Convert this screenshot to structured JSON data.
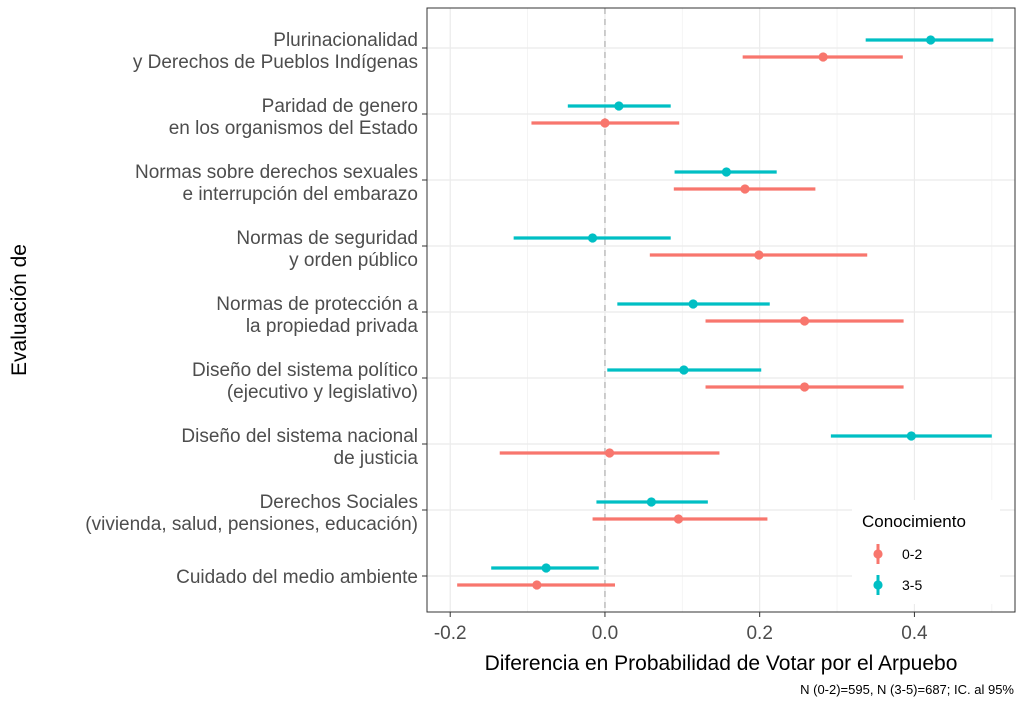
{
  "chart_data": {
    "type": "forest",
    "xlabel": "Diferencia en Probabilidad de Votar por el Arpuebo",
    "ylabel": "Evaluación de",
    "caption": "N (0-2)=595, N (3-5)=687; IC. al 95%",
    "xlim": [
      -0.23,
      0.53
    ],
    "xticks": [
      -0.2,
      0.0,
      0.2,
      0.4
    ],
    "xtick_labels": [
      "-0.2",
      "0.0",
      "0.2",
      "0.4"
    ],
    "reference_line": 0.0,
    "grid": true,
    "legend": {
      "title": "Conocimiento",
      "position": "bottom-right inside",
      "entries": [
        "0-2",
        "3-5"
      ]
    },
    "colors": {
      "0-2": "#F8766D",
      "3-5": "#00BFC4"
    },
    "categories": [
      {
        "line1": "Plurinacionalidad",
        "line2": "y Derechos de Pueblos Indígenas"
      },
      {
        "line1": "Paridad de genero",
        "line2": "en los organismos del Estado"
      },
      {
        "line1": "Normas sobre derechos sexuales",
        "line2": "e interrupción del embarazo"
      },
      {
        "line1": "Normas de seguridad",
        "line2": "y orden público"
      },
      {
        "line1": "Normas de protección a",
        "line2": "la propiedad privada"
      },
      {
        "line1": "Diseño del sistema político",
        "line2": "(ejecutivo y legislativo)"
      },
      {
        "line1": "Diseño del sistema nacional",
        "line2": "de justicia"
      },
      {
        "line1": "Derechos Sociales",
        "line2": "(vivienda, salud, pensiones, educación)"
      },
      {
        "line1": "Cuidado del medio ambiente",
        "line2": ""
      }
    ],
    "series": [
      {
        "name": "0-2",
        "estimates": [
          0.282,
          0.0,
          0.181,
          0.199,
          0.258,
          0.258,
          0.006,
          0.095,
          -0.088
        ],
        "lower": [
          0.178,
          -0.095,
          0.089,
          0.058,
          0.13,
          0.13,
          -0.136,
          -0.016,
          -0.191
        ],
        "upper": [
          0.385,
          0.096,
          0.272,
          0.339,
          0.386,
          0.386,
          0.148,
          0.21,
          0.013
        ]
      },
      {
        "name": "3-5",
        "estimates": [
          0.421,
          0.018,
          0.157,
          -0.016,
          0.114,
          0.102,
          0.396,
          0.06,
          -0.076
        ],
        "lower": [
          0.337,
          -0.048,
          0.09,
          -0.118,
          0.016,
          0.003,
          0.292,
          -0.011,
          -0.147
        ],
        "upper": [
          0.502,
          0.085,
          0.222,
          0.085,
          0.213,
          0.202,
          0.5,
          0.133,
          -0.008
        ]
      }
    ]
  }
}
